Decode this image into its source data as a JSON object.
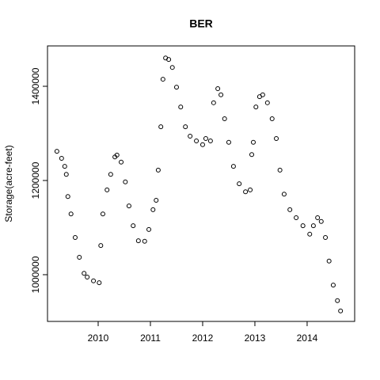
{
  "chart_data": {
    "type": "scatter",
    "title": "BER",
    "y_label": "Storage(acre-feet)",
    "x": [
      2009.21,
      2009.3,
      2009.36,
      2009.39,
      2009.42,
      2009.48,
      2009.56,
      2009.64,
      2009.73,
      2009.79,
      2009.91,
      2010.02,
      2010.05,
      2010.09,
      2010.17,
      2010.24,
      2010.32,
      2010.36,
      2010.44,
      2010.52,
      2010.59,
      2010.67,
      2010.77,
      2010.89,
      2010.97,
      2011.05,
      2011.11,
      2011.15,
      2011.2,
      2011.24,
      2011.29,
      2011.35,
      2011.42,
      2011.5,
      2011.58,
      2011.67,
      2011.76,
      2011.88,
      2012.0,
      2012.06,
      2012.15,
      2012.21,
      2012.29,
      2012.35,
      2012.42,
      2012.5,
      2012.59,
      2012.7,
      2012.82,
      2012.91,
      2012.94,
      2012.97,
      2013.02,
      2013.09,
      2013.15,
      2013.24,
      2013.33,
      2013.41,
      2013.48,
      2013.56,
      2013.67,
      2013.79,
      2013.92,
      2014.05,
      2014.12,
      2014.2,
      2014.27,
      2014.35,
      2014.42,
      2014.5,
      2014.58,
      2014.64
    ],
    "values": [
      1262000,
      1247000,
      1230000,
      1213000,
      1166000,
      1129000,
      1079000,
      1037000,
      1003000,
      995000,
      987000,
      983000,
      1062000,
      1129000,
      1180000,
      1213000,
      1250000,
      1254000,
      1239000,
      1197000,
      1146000,
      1104000,
      1072000,
      1071000,
      1096000,
      1138000,
      1158000,
      1222000,
      1314000,
      1415000,
      1460000,
      1457000,
      1440000,
      1398000,
      1356000,
      1314000,
      1294000,
      1284000,
      1276000,
      1289000,
      1284000,
      1365000,
      1395000,
      1382000,
      1331000,
      1281000,
      1230000,
      1193000,
      1176000,
      1180000,
      1255000,
      1281000,
      1356000,
      1378000,
      1382000,
      1365000,
      1331000,
      1289000,
      1222000,
      1171000,
      1138000,
      1121000,
      1104000,
      1086000,
      1104000,
      1121000,
      1113000,
      1079000,
      1029000,
      978000,
      945000,
      923000
    ],
    "color": "#000000",
    "xlim": [
      2009.03,
      2014.91
    ],
    "xticks": [
      2010,
      2011,
      2012,
      2013,
      2014
    ],
    "ylim": [
      900800,
      1485700
    ],
    "yticks": [
      1000000,
      1200000,
      1400000
    ]
  }
}
